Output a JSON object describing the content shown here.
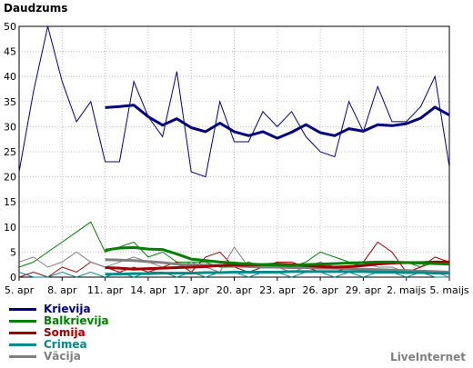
{
  "chart_data": {
    "type": "line",
    "title": "Daudzums",
    "x_tick_labels": [
      "5. apr",
      "8. apr",
      "11. apr",
      "14. apr",
      "17. apr",
      "20. apr",
      "23. apr",
      "26. apr",
      "29. apr",
      "2. maijs",
      "5. maijs"
    ],
    "x_tick_days": [
      0,
      3,
      6,
      9,
      12,
      15,
      18,
      21,
      24,
      27,
      30
    ],
    "x_range_days": [
      0,
      30
    ],
    "ylim": [
      0,
      50
    ],
    "yticks": [
      0,
      5,
      10,
      15,
      20,
      25,
      30,
      35,
      40,
      45,
      50
    ],
    "grid": true,
    "legend_position": "bottom-left",
    "series": [
      {
        "name": "Krievija",
        "color": "#000080",
        "values": [
          21,
          37,
          50,
          39,
          31,
          35,
          23,
          23,
          39,
          32,
          28,
          41,
          21,
          20,
          35,
          27,
          27,
          33,
          30,
          33,
          28,
          25,
          24,
          35,
          29,
          38,
          31,
          31,
          34,
          40,
          22
        ],
        "avg_start_day": 6,
        "avg_values": [
          33.8,
          34,
          34.3,
          32,
          30.3,
          31.6,
          29.8,
          29,
          30.7,
          29,
          28.2,
          29,
          27.7,
          28.9,
          30.4,
          28.8,
          28.2,
          29.6,
          29.1,
          30.4,
          30.2,
          30.6,
          31.7,
          33.9,
          32.3
        ]
      },
      {
        "name": "Balkrievija",
        "color": "#008000",
        "values": [
          2,
          3,
          5,
          7,
          9,
          11,
          5,
          6,
          7,
          4,
          5,
          3,
          3,
          3,
          2,
          2,
          3,
          2,
          2,
          2,
          3,
          5,
          4,
          3,
          3,
          3,
          3,
          3,
          2,
          3,
          3
        ],
        "avg_start_day": 6,
        "avg_values": [
          5.4,
          5.8,
          5.9,
          5.6,
          5.5,
          4.6,
          3.6,
          3.3,
          3,
          2.8,
          2.6,
          2.5,
          2.4,
          2.3,
          2.5,
          2.6,
          2.7,
          2.8,
          2.9,
          3.0,
          3.0,
          2.9,
          2.8,
          2.7,
          2.6
        ]
      },
      {
        "name": "Somija",
        "color": "#a00000",
        "values": [
          0,
          1,
          0,
          2,
          1,
          3,
          2,
          1,
          2,
          1,
          2,
          3,
          1,
          4,
          5,
          2,
          1,
          2,
          3,
          3,
          2,
          1,
          1,
          2,
          3,
          7,
          5,
          1,
          2,
          4,
          3
        ],
        "avg_start_day": 6,
        "avg_values": [
          1.9,
          1.8,
          1.6,
          1.7,
          1.8,
          1.9,
          2,
          2.1,
          2.3,
          2.4,
          2.4,
          2.5,
          2.6,
          2.5,
          2.3,
          2.1,
          2,
          2.1,
          2.3,
          2.6,
          2.8,
          2.9,
          2.9,
          3.0,
          3.0
        ]
      },
      {
        "name": "Crimea",
        "color": "#008b8b",
        "values": [
          1,
          0,
          0,
          1,
          0,
          1,
          0,
          1,
          0,
          1,
          1,
          0,
          1,
          0,
          1,
          1,
          0,
          1,
          1,
          0,
          1,
          1,
          0,
          1,
          0,
          1,
          1,
          0,
          1,
          0,
          0
        ],
        "avg_start_day": 6,
        "avg_values": [
          0.6,
          0.6,
          0.7,
          0.7,
          0.8,
          0.8,
          0.8,
          0.9,
          0.9,
          1,
          1,
          1,
          1,
          1.1,
          1.1,
          1.1,
          1.1,
          1.1,
          1.1,
          1,
          1,
          0.9,
          0.9,
          0.8,
          0.8
        ]
      },
      {
        "name": "Vācija",
        "color": "#808080",
        "values": [
          3,
          4,
          2,
          3,
          5,
          3,
          2,
          3,
          4,
          3,
          2,
          2,
          3,
          2,
          1,
          6,
          2,
          2,
          2,
          1,
          2,
          3,
          2,
          2,
          3,
          2,
          2,
          1,
          1,
          1,
          0
        ],
        "avg_start_day": 6,
        "avg_values": [
          3.5,
          3.4,
          3.3,
          3.1,
          2.9,
          2.6,
          2.5,
          2.4,
          2.3,
          2.2,
          2.1,
          2.0,
          2.0,
          1.9,
          1.9,
          1.8,
          1.8,
          1.7,
          1.6,
          1.5,
          1.4,
          1.3,
          1.2,
          1.1,
          1.0
        ]
      }
    ]
  },
  "source_label": "LiveInternet"
}
